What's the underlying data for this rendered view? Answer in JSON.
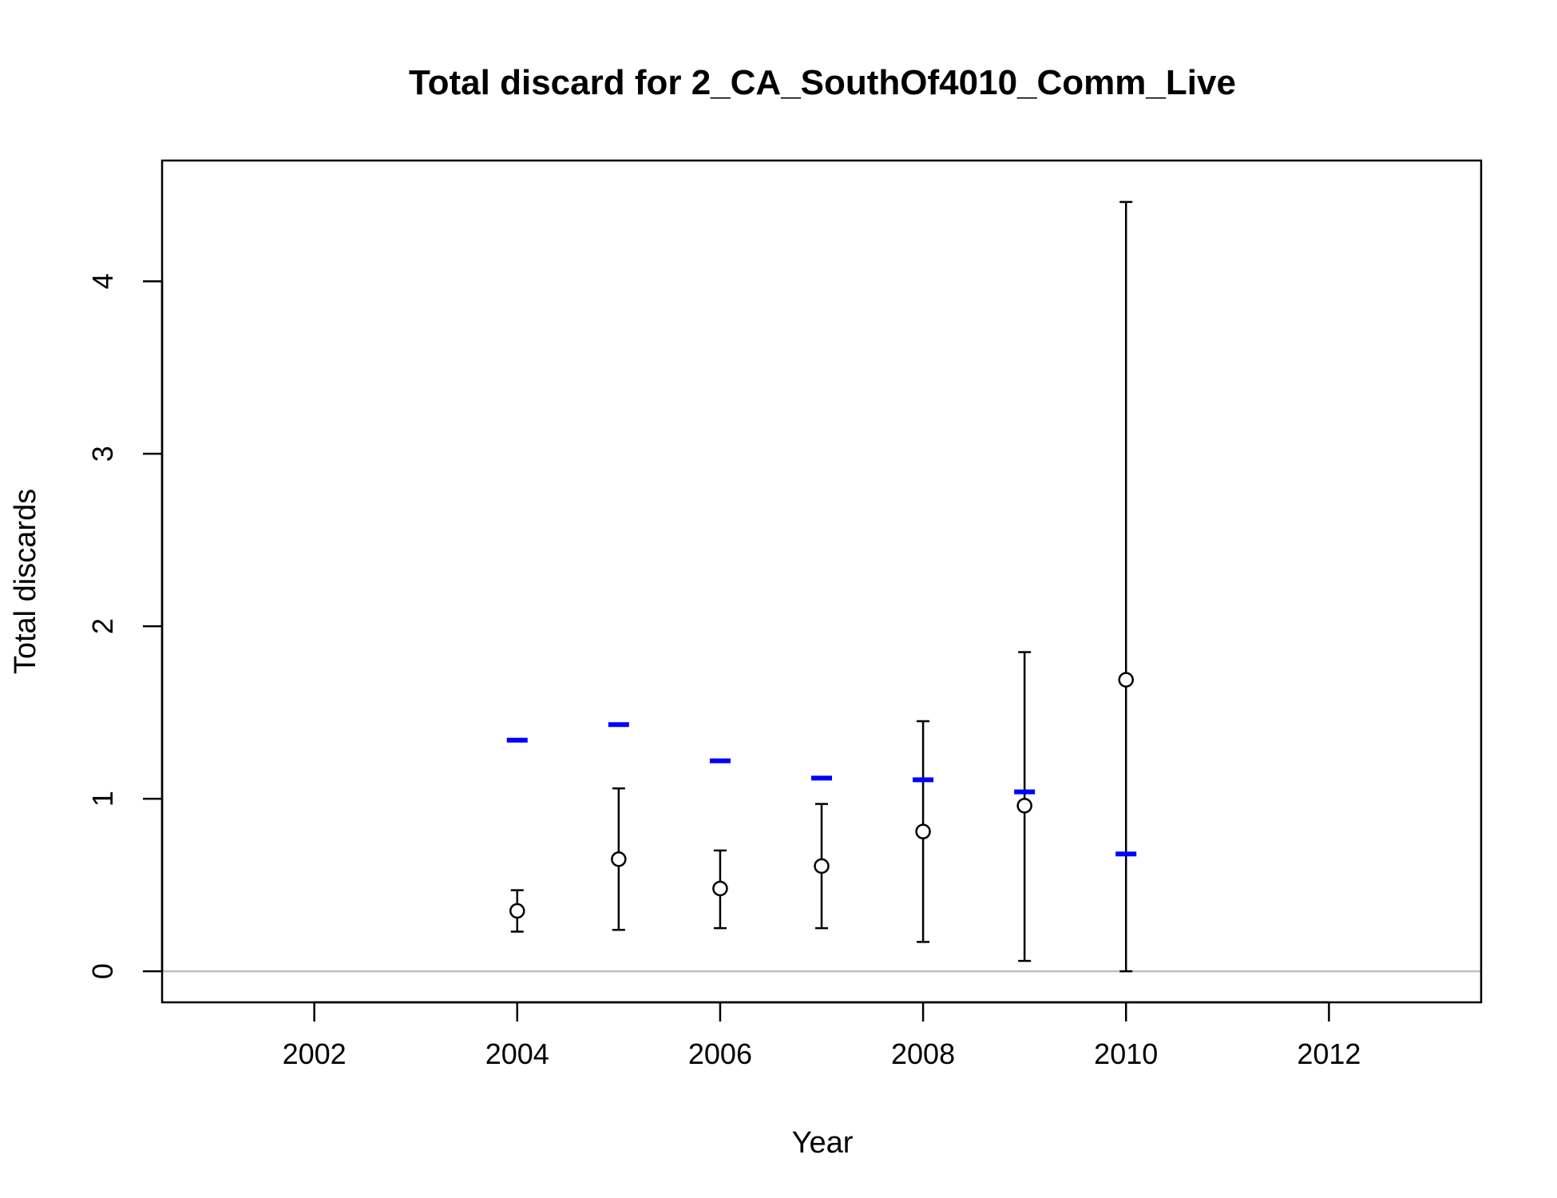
{
  "chart_data": {
    "type": "scatter",
    "title": "Total discard for 2_CA_SouthOf4010_Comm_Live",
    "xlabel": "Year",
    "ylabel": "Total discards",
    "xlim": [
      2000.5,
      2013.5
    ],
    "ylim": [
      -0.18,
      4.7
    ],
    "x_ticks": [
      2002,
      2004,
      2006,
      2008,
      2010,
      2012
    ],
    "y_ticks": [
      0,
      1,
      2,
      3,
      4
    ],
    "grid": false,
    "zero_line": true,
    "observed": {
      "color": "#000000",
      "points": [
        {
          "x": 2004,
          "y": 0.35,
          "lower": 0.23,
          "upper": 0.47
        },
        {
          "x": 2005,
          "y": 0.65,
          "lower": 0.24,
          "upper": 1.06
        },
        {
          "x": 2006,
          "y": 0.48,
          "lower": 0.25,
          "upper": 0.7
        },
        {
          "x": 2007,
          "y": 0.61,
          "lower": 0.25,
          "upper": 0.97
        },
        {
          "x": 2008,
          "y": 0.81,
          "lower": 0.17,
          "upper": 1.45
        },
        {
          "x": 2009,
          "y": 0.96,
          "lower": 0.06,
          "upper": 1.85
        },
        {
          "x": 2010,
          "y": 1.69,
          "lower": 0.0,
          "upper": 4.46
        }
      ]
    },
    "expected": {
      "color": "#0000ff",
      "points": [
        {
          "x": 2004,
          "y": 1.34
        },
        {
          "x": 2005,
          "y": 1.43
        },
        {
          "x": 2006,
          "y": 1.22
        },
        {
          "x": 2007,
          "y": 1.12
        },
        {
          "x": 2008,
          "y": 1.11
        },
        {
          "x": 2009,
          "y": 1.04
        },
        {
          "x": 2010,
          "y": 0.68
        }
      ]
    }
  }
}
